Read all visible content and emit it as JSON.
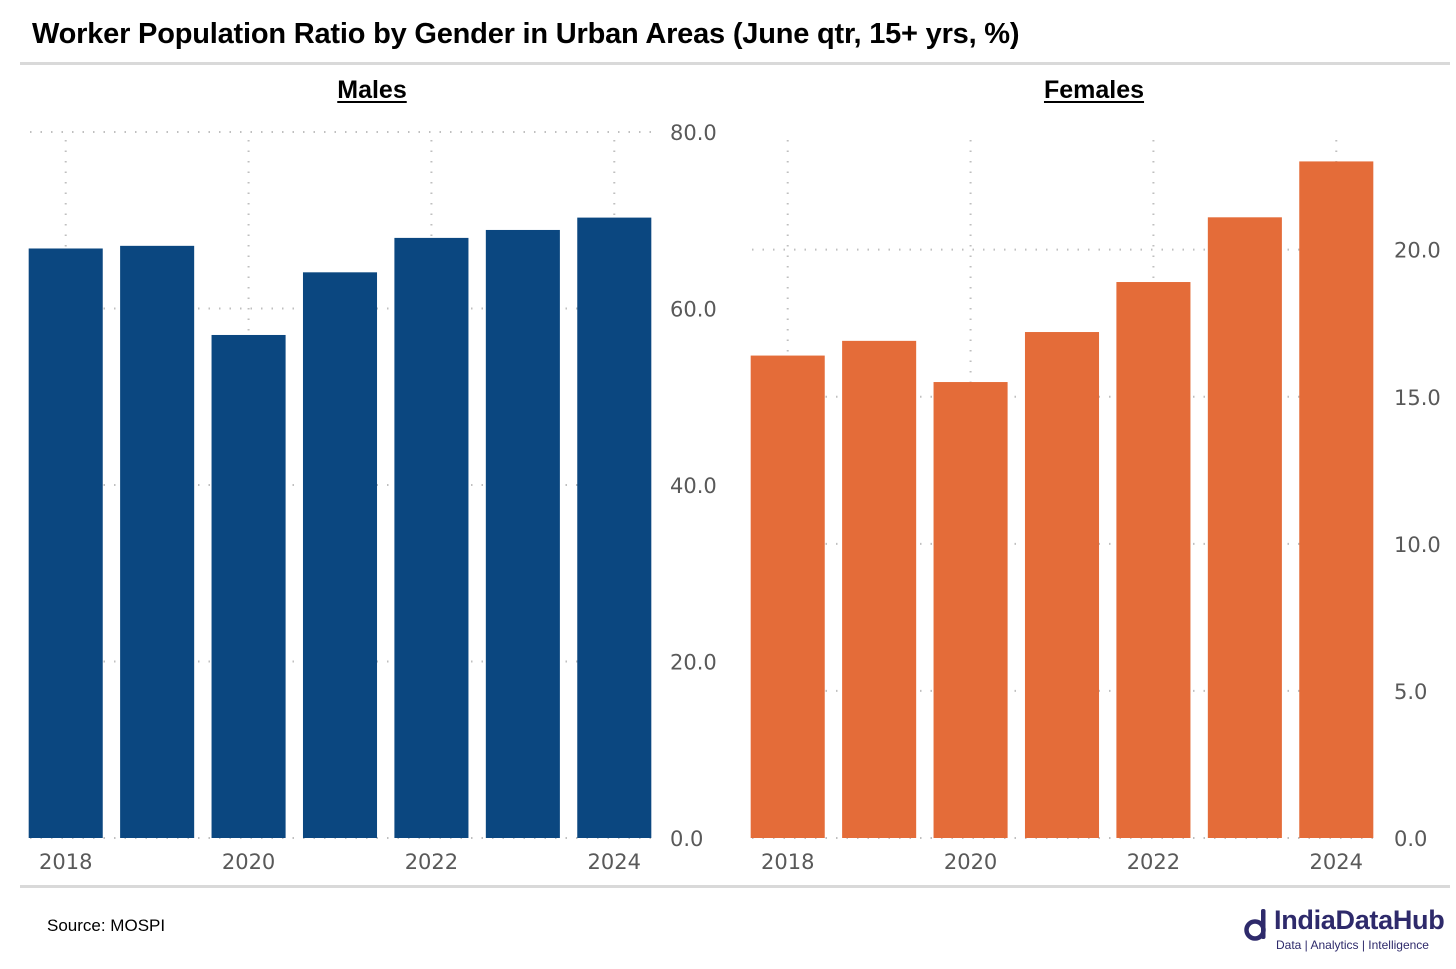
{
  "title": "Worker Population Ratio by Gender in Urban Areas (June qtr, 15+ yrs, %)",
  "source": "Source: MOSPI",
  "brand": {
    "name": "IndiaDataHub",
    "tagline": "Data | Analytics | Intelligence",
    "color": "#2e2a6b"
  },
  "chart_data": [
    {
      "type": "bar",
      "title": "Males",
      "x": [
        2018,
        2019,
        2020,
        2021,
        2022,
        2023,
        2024
      ],
      "x_tick_labels": [
        "2018",
        "2020",
        "2022",
        "2024"
      ],
      "values": [
        66.8,
        67.1,
        57.0,
        64.1,
        68.0,
        68.9,
        70.3
      ],
      "ylim": [
        0,
        80
      ],
      "y_ticks": [
        "0.0",
        "20.0",
        "40.0",
        "60.0",
        "80.0"
      ],
      "y_axis_side": "right",
      "grid": true,
      "color": "#0b4780"
    },
    {
      "type": "bar",
      "title": "Females",
      "x": [
        2018,
        2019,
        2020,
        2021,
        2022,
        2023,
        2024
      ],
      "x_tick_labels": [
        "2018",
        "2020",
        "2022",
        "2024"
      ],
      "values": [
        16.4,
        16.9,
        15.5,
        17.2,
        18.9,
        21.1,
        23.0
      ],
      "ylim": [
        0,
        24
      ],
      "y_ticks": [
        "0.0",
        "5.0",
        "10.0",
        "15.0",
        "20.0"
      ],
      "y_axis_side": "right",
      "grid": true,
      "color": "#e46c39"
    }
  ]
}
